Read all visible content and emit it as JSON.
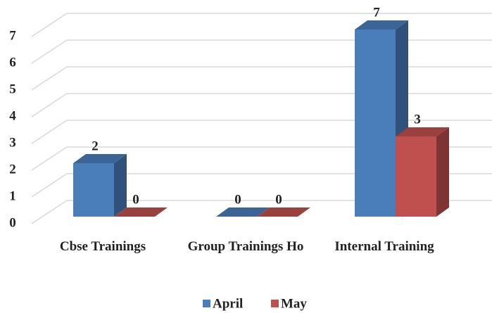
{
  "chart_data": {
    "type": "bar3d",
    "categories": [
      "Cbse Trainings",
      "Group Trainings Ho",
      "Internal Training"
    ],
    "series": [
      {
        "name": "April",
        "color": "#4a7ebb",
        "values": [
          2,
          0,
          7
        ]
      },
      {
        "name": "May",
        "color": "#c0504d",
        "values": [
          0,
          0,
          3
        ]
      }
    ],
    "ylim": [
      0,
      7
    ],
    "yticks": [
      0,
      1,
      2,
      3,
      4,
      5,
      6,
      7
    ],
    "grid": true,
    "legend": "bottom"
  }
}
